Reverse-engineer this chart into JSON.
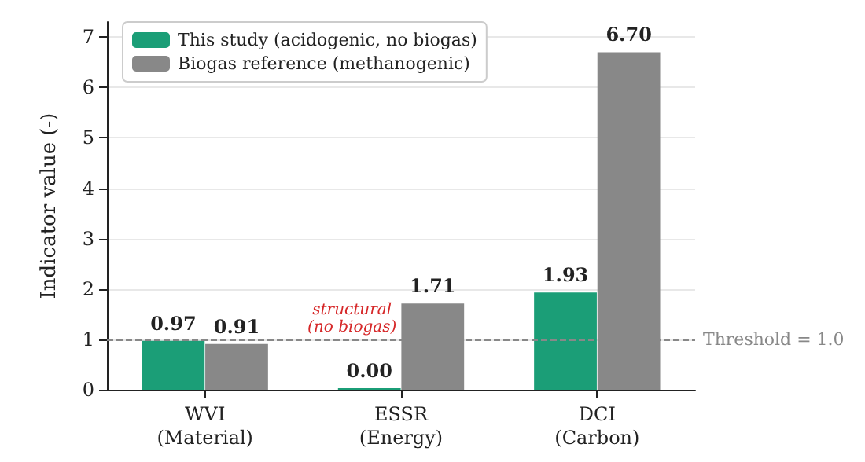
{
  "chart_data": {
    "type": "bar",
    "ylabel": "Indicator value (-)",
    "categories": [
      "WVI\n(Material)",
      "ESSR\n(Energy)",
      "DCI\n(Carbon)"
    ],
    "series": [
      {
        "name": "This study (acidogenic, no biogas)",
        "color": "#1b9e77",
        "values": [
          0.97,
          0.0,
          1.93
        ],
        "value_labels": [
          "0.97",
          "0.00",
          "1.93"
        ]
      },
      {
        "name": "Biogas reference (methanogenic)",
        "color": "#888888",
        "values": [
          0.91,
          1.71,
          6.7
        ],
        "value_labels": [
          "0.91",
          "1.71",
          "6.70"
        ]
      }
    ],
    "ylim": [
      0,
      7.3
    ],
    "yticks": [
      0,
      1,
      2,
      3,
      4,
      5,
      6,
      7
    ],
    "grid": "y",
    "legend": "top left",
    "ref_lines": [
      {
        "axis": "y",
        "value": 1,
        "label": "Threshold = 1.0",
        "color": "#888888",
        "line_style": "dashed"
      }
    ],
    "annotations": [
      {
        "text": "structural\n(no biogas)",
        "x": "ESSR\n(Energy)",
        "y": 1.4
      }
    ]
  }
}
